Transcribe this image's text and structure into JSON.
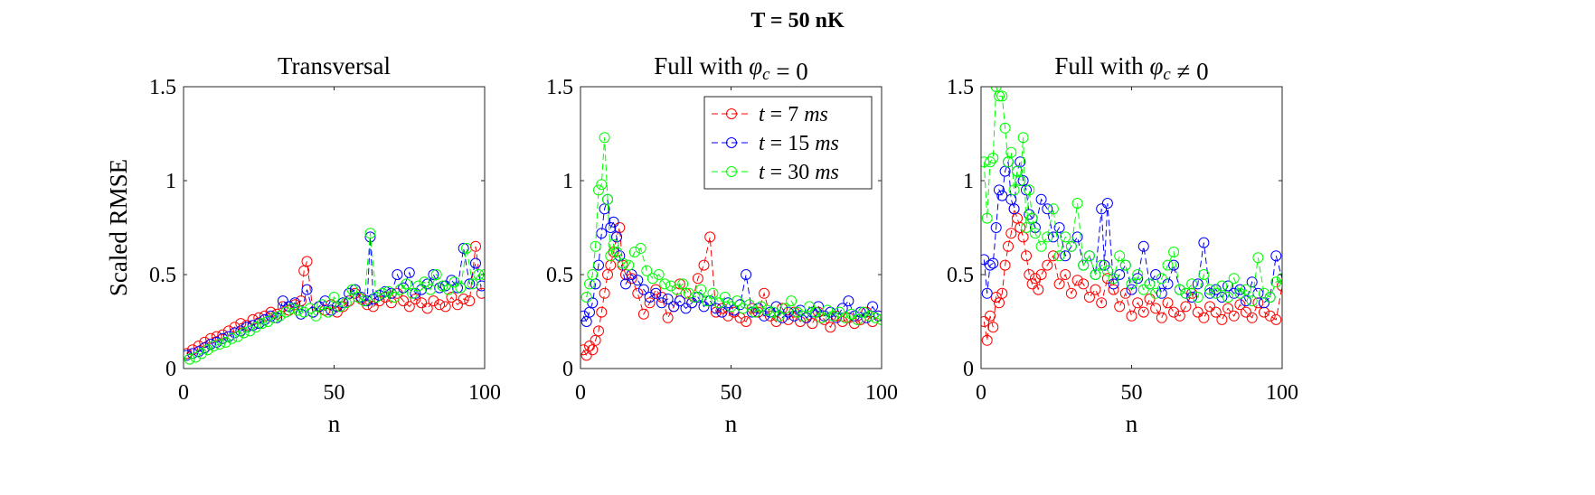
{
  "figure_title": "T = 50 nK",
  "series_styles": [
    {
      "name": "t = 7 ms",
      "color": "#ff0000"
    },
    {
      "name": "t = 15 ms",
      "color": "#0000ff"
    },
    {
      "name": "t = 30 ms",
      "color": "#00ff00"
    }
  ],
  "chart_data": [
    {
      "type": "scatter",
      "title": "Transversal",
      "xlabel": "n",
      "ylabel": "Scaled RMSE",
      "xlim": [
        0,
        100
      ],
      "ylim": [
        0,
        1.5
      ],
      "xticks": [
        0,
        50,
        100
      ],
      "yticks": [
        0,
        0.5,
        1,
        1.5
      ],
      "legend": false,
      "series": [
        {
          "name": "t = 7 ms",
          "x": [
            1,
            3,
            5,
            7,
            9,
            11,
            13,
            15,
            17,
            19,
            21,
            23,
            25,
            27,
            29,
            31,
            33,
            35,
            37,
            39,
            40,
            41,
            43,
            45,
            47,
            49,
            51,
            53,
            55,
            57,
            59,
            61,
            63,
            65,
            67,
            69,
            71,
            73,
            75,
            77,
            79,
            81,
            83,
            85,
            87,
            89,
            91,
            93,
            95,
            97,
            99
          ],
          "y": [
            0.08,
            0.1,
            0.12,
            0.14,
            0.16,
            0.17,
            0.18,
            0.2,
            0.22,
            0.24,
            0.23,
            0.26,
            0.27,
            0.28,
            0.3,
            0.29,
            0.33,
            0.31,
            0.34,
            0.36,
            0.52,
            0.57,
            0.3,
            0.33,
            0.31,
            0.34,
            0.3,
            0.33,
            0.36,
            0.4,
            0.37,
            0.34,
            0.33,
            0.36,
            0.38,
            0.35,
            0.4,
            0.36,
            0.33,
            0.37,
            0.35,
            0.32,
            0.36,
            0.34,
            0.33,
            0.38,
            0.34,
            0.37,
            0.36,
            0.65,
            0.4
          ]
        },
        {
          "name": "t = 15 ms",
          "x": [
            1,
            3,
            5,
            7,
            9,
            11,
            13,
            15,
            17,
            19,
            21,
            23,
            25,
            27,
            29,
            31,
            33,
            35,
            37,
            39,
            41,
            43,
            45,
            47,
            49,
            51,
            53,
            55,
            57,
            59,
            61,
            62,
            63,
            65,
            67,
            69,
            71,
            73,
            75,
            77,
            79,
            81,
            83,
            85,
            87,
            89,
            91,
            93,
            95,
            97,
            99
          ],
          "y": [
            0.07,
            0.08,
            0.09,
            0.11,
            0.13,
            0.14,
            0.16,
            0.17,
            0.19,
            0.2,
            0.22,
            0.23,
            0.24,
            0.26,
            0.28,
            0.27,
            0.36,
            0.33,
            0.35,
            0.29,
            0.42,
            0.3,
            0.33,
            0.36,
            0.31,
            0.33,
            0.35,
            0.4,
            0.42,
            0.38,
            0.36,
            0.7,
            0.37,
            0.39,
            0.41,
            0.4,
            0.5,
            0.43,
            0.51,
            0.4,
            0.42,
            0.45,
            0.5,
            0.43,
            0.44,
            0.47,
            0.43,
            0.64,
            0.45,
            0.56,
            0.44
          ]
        },
        {
          "name": "t = 30 ms",
          "x": [
            2,
            4,
            6,
            8,
            10,
            12,
            14,
            16,
            18,
            20,
            22,
            24,
            26,
            28,
            30,
            32,
            34,
            36,
            38,
            40,
            42,
            44,
            46,
            48,
            50,
            52,
            54,
            56,
            58,
            60,
            62,
            64,
            66,
            68,
            70,
            72,
            74,
            76,
            78,
            80,
            82,
            84,
            86,
            88,
            90,
            92,
            94,
            96,
            98,
            100
          ],
          "y": [
            0.05,
            0.06,
            0.08,
            0.1,
            0.12,
            0.13,
            0.14,
            0.16,
            0.17,
            0.19,
            0.2,
            0.22,
            0.24,
            0.25,
            0.27,
            0.28,
            0.3,
            0.32,
            0.31,
            0.3,
            0.32,
            0.28,
            0.34,
            0.3,
            0.38,
            0.33,
            0.35,
            0.42,
            0.38,
            0.36,
            0.72,
            0.38,
            0.4,
            0.41,
            0.38,
            0.42,
            0.45,
            0.4,
            0.44,
            0.46,
            0.42,
            0.5,
            0.44,
            0.42,
            0.46,
            0.43,
            0.64,
            0.45,
            0.5,
            0.5
          ]
        }
      ]
    },
    {
      "type": "scatter",
      "title": "Full with φc = 0",
      "xlabel": "n",
      "ylabel": "",
      "xlim": [
        0,
        100
      ],
      "ylim": [
        0,
        1.5
      ],
      "xticks": [
        0,
        50,
        100
      ],
      "yticks": [
        0,
        0.5,
        1,
        1.5
      ],
      "legend": true,
      "legend_position": "top-right",
      "series": [
        {
          "name": "t = 7 ms",
          "x": [
            1,
            2,
            3,
            4,
            5,
            6,
            7,
            8,
            9,
            10,
            11,
            12,
            13,
            14,
            15,
            17,
            19,
            21,
            23,
            25,
            27,
            29,
            31,
            33,
            35,
            37,
            39,
            41,
            43,
            45,
            47,
            49,
            51,
            53,
            55,
            57,
            59,
            61,
            63,
            65,
            67,
            69,
            71,
            73,
            75,
            77,
            79,
            81,
            83,
            85,
            87,
            89,
            91,
            93,
            95,
            97,
            99
          ],
          "y": [
            0.1,
            0.07,
            0.12,
            0.1,
            0.15,
            0.2,
            0.3,
            0.4,
            0.5,
            0.55,
            0.62,
            0.7,
            0.75,
            0.55,
            0.5,
            0.48,
            0.4,
            0.29,
            0.35,
            0.42,
            0.38,
            0.27,
            0.33,
            0.45,
            0.4,
            0.35,
            0.48,
            0.55,
            0.7,
            0.3,
            0.32,
            0.28,
            0.3,
            0.27,
            0.25,
            0.32,
            0.3,
            0.4,
            0.28,
            0.25,
            0.32,
            0.26,
            0.3,
            0.25,
            0.27,
            0.24,
            0.3,
            0.26,
            0.22,
            0.28,
            0.25,
            0.27,
            0.24,
            0.26,
            0.3,
            0.25,
            0.28
          ]
        },
        {
          "name": "t = 15 ms",
          "x": [
            1,
            2,
            3,
            4,
            5,
            6,
            7,
            8,
            9,
            10,
            11,
            12,
            13,
            15,
            17,
            19,
            21,
            23,
            25,
            27,
            29,
            31,
            33,
            35,
            37,
            39,
            41,
            43,
            45,
            47,
            49,
            51,
            53,
            55,
            57,
            59,
            61,
            63,
            65,
            67,
            69,
            71,
            73,
            75,
            77,
            79,
            81,
            83,
            85,
            87,
            89,
            91,
            93,
            95,
            97,
            99
          ],
          "y": [
            0.28,
            0.25,
            0.3,
            0.35,
            0.45,
            0.55,
            0.72,
            0.85,
            0.9,
            0.75,
            0.78,
            0.7,
            0.6,
            0.45,
            0.5,
            0.47,
            0.42,
            0.38,
            0.4,
            0.35,
            0.37,
            0.33,
            0.36,
            0.32,
            0.35,
            0.38,
            0.33,
            0.36,
            0.32,
            0.3,
            0.35,
            0.31,
            0.34,
            0.5,
            0.3,
            0.32,
            0.28,
            0.3,
            0.33,
            0.27,
            0.3,
            0.28,
            0.31,
            0.27,
            0.3,
            0.33,
            0.28,
            0.3,
            0.27,
            0.32,
            0.36,
            0.28,
            0.3,
            0.27,
            0.33,
            0.28
          ]
        },
        {
          "name": "t = 30 ms",
          "x": [
            2,
            3,
            4,
            5,
            6,
            7,
            8,
            9,
            10,
            11,
            12,
            14,
            16,
            18,
            20,
            22,
            24,
            26,
            28,
            30,
            32,
            34,
            36,
            38,
            40,
            42,
            44,
            46,
            48,
            50,
            52,
            54,
            56,
            58,
            60,
            62,
            64,
            66,
            68,
            70,
            72,
            74,
            76,
            78,
            80,
            82,
            84,
            86,
            88,
            90,
            92,
            94,
            96,
            98,
            100
          ],
          "y": [
            0.38,
            0.45,
            0.5,
            0.65,
            0.95,
            0.98,
            1.23,
            0.9,
            0.6,
            0.66,
            0.62,
            0.56,
            0.55,
            0.62,
            0.64,
            0.52,
            0.48,
            0.5,
            0.45,
            0.44,
            0.42,
            0.45,
            0.4,
            0.38,
            0.42,
            0.36,
            0.4,
            0.35,
            0.38,
            0.33,
            0.36,
            0.32,
            0.34,
            0.3,
            0.33,
            0.31,
            0.3,
            0.28,
            0.32,
            0.36,
            0.3,
            0.28,
            0.33,
            0.3,
            0.27,
            0.31,
            0.28,
            0.3,
            0.27,
            0.29,
            0.26,
            0.3,
            0.28,
            0.27,
            0.26
          ]
        }
      ]
    },
    {
      "type": "scatter",
      "title": "Full with φc ≠ 0",
      "xlabel": "n",
      "ylabel": "",
      "xlim": [
        0,
        100
      ],
      "ylim": [
        0,
        1.5
      ],
      "xticks": [
        0,
        50,
        100
      ],
      "yticks": [
        0,
        0.5,
        1,
        1.5
      ],
      "legend": false,
      "series": [
        {
          "name": "t = 7 ms",
          "x": [
            1,
            2,
            3,
            4,
            5,
            6,
            7,
            8,
            9,
            10,
            11,
            12,
            13,
            14,
            15,
            16,
            17,
            18,
            19,
            20,
            22,
            24,
            26,
            28,
            30,
            32,
            34,
            36,
            38,
            40,
            42,
            44,
            46,
            48,
            50,
            52,
            54,
            56,
            58,
            60,
            62,
            64,
            66,
            68,
            70,
            72,
            74,
            76,
            78,
            80,
            82,
            84,
            86,
            88,
            90,
            92,
            94,
            96,
            98,
            100
          ],
          "y": [
            0.25,
            0.15,
            0.28,
            0.22,
            0.38,
            0.35,
            0.4,
            0.55,
            0.65,
            0.72,
            0.85,
            0.8,
            0.75,
            0.7,
            0.6,
            0.5,
            0.45,
            0.48,
            0.42,
            0.5,
            0.55,
            0.6,
            0.45,
            0.5,
            0.4,
            0.47,
            0.45,
            0.38,
            0.42,
            0.35,
            0.48,
            0.42,
            0.33,
            0.4,
            0.28,
            0.35,
            0.3,
            0.37,
            0.32,
            0.27,
            0.35,
            0.3,
            0.28,
            0.33,
            0.4,
            0.3,
            0.27,
            0.33,
            0.3,
            0.26,
            0.32,
            0.28,
            0.34,
            0.3,
            0.27,
            0.35,
            0.3,
            0.28,
            0.26,
            0.44
          ]
        },
        {
          "name": "t = 15 ms",
          "x": [
            1,
            2,
            3,
            4,
            5,
            6,
            7,
            8,
            9,
            10,
            11,
            12,
            13,
            14,
            15,
            16,
            17,
            18,
            20,
            22,
            24,
            26,
            28,
            30,
            32,
            34,
            36,
            38,
            40,
            41,
            42,
            44,
            46,
            48,
            50,
            52,
            54,
            56,
            58,
            60,
            62,
            64,
            66,
            68,
            70,
            72,
            74,
            76,
            78,
            80,
            82,
            84,
            86,
            88,
            90,
            92,
            94,
            96,
            98,
            100
          ],
          "y": [
            0.58,
            0.4,
            0.55,
            0.56,
            0.75,
            0.95,
            0.92,
            1.05,
            1.1,
            0.9,
            0.85,
            1.05,
            1.1,
            1.0,
            0.95,
            0.82,
            0.8,
            0.75,
            0.9,
            0.85,
            0.7,
            0.75,
            0.6,
            0.65,
            0.7,
            0.55,
            0.6,
            0.5,
            0.85,
            0.55,
            0.88,
            0.45,
            0.5,
            0.55,
            0.42,
            0.48,
            0.65,
            0.45,
            0.5,
            0.4,
            0.45,
            0.55,
            0.42,
            0.4,
            0.38,
            0.45,
            0.67,
            0.4,
            0.42,
            0.38,
            0.44,
            0.4,
            0.42,
            0.36,
            0.46,
            0.4,
            0.35,
            0.38,
            0.6,
            0.48
          ]
        },
        {
          "name": "t = 30 ms",
          "x": [
            1,
            2,
            3,
            4,
            5,
            6,
            7,
            8,
            9,
            10,
            11,
            12,
            13,
            14,
            15,
            16,
            17,
            18,
            20,
            22,
            24,
            26,
            28,
            30,
            32,
            34,
            36,
            38,
            40,
            42,
            44,
            46,
            48,
            50,
            52,
            54,
            56,
            58,
            60,
            62,
            64,
            66,
            68,
            70,
            72,
            74,
            76,
            78,
            80,
            82,
            84,
            86,
            88,
            90,
            92,
            94,
            96,
            98,
            100
          ],
          "y": [
            1.1,
            0.8,
            1.1,
            1.12,
            1.5,
            1.45,
            1.45,
            1.28,
            1.1,
            1.15,
            0.95,
            1.05,
            1.0,
            1.23,
            0.75,
            0.95,
            0.8,
            0.72,
            0.65,
            0.7,
            0.85,
            0.6,
            0.7,
            0.65,
            0.88,
            0.55,
            0.6,
            0.5,
            0.55,
            0.52,
            0.48,
            0.6,
            0.55,
            0.45,
            0.5,
            0.42,
            0.45,
            0.4,
            0.48,
            0.55,
            0.62,
            0.42,
            0.4,
            0.45,
            0.38,
            0.5,
            0.42,
            0.4,
            0.44,
            0.38,
            0.48,
            0.4,
            0.42,
            0.36,
            0.59,
            0.4,
            0.38,
            0.46,
            0.48
          ]
        }
      ]
    }
  ]
}
